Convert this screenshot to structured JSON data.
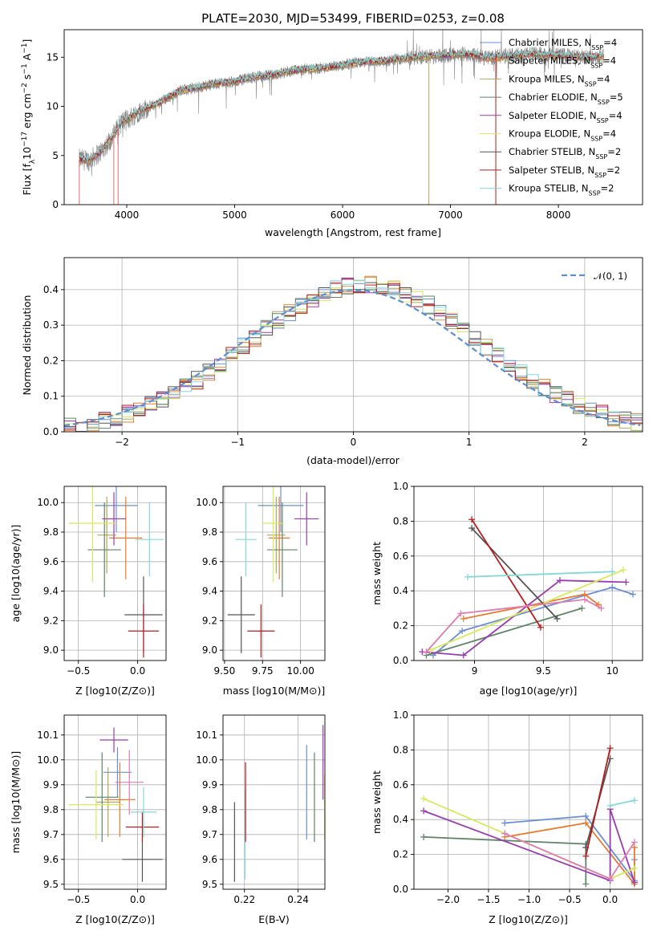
{
  "colors": {
    "gray": "#808080",
    "fit": [
      "#6b8fd6",
      "#e87b2e",
      "#b5a55a",
      "#5e8566",
      "#9b3bb0",
      "#e5e862",
      "#555555",
      "#b81c1c",
      "#85d8d8"
    ],
    "normal_line": "#5b8fd6",
    "grid": "#b0b0b0"
  },
  "chart_data": [
    {
      "id": "spectrum",
      "type": "line",
      "title": "PLATE=2030, MJD=53499, FIBERID=0253, z=0.08",
      "xlabel": "wavelength [Angstrom, rest frame]",
      "ylabel_parts": [
        "Flux [f",
        "λ",
        "10",
        "−17",
        " erg cm",
        "−2",
        " s",
        "−1",
        " A",
        "−1",
        "]"
      ],
      "xlim": [
        3420,
        8780
      ],
      "ylim": [
        0,
        17.8
      ],
      "xticks": [
        4000,
        5000,
        6000,
        7000,
        8000
      ],
      "yticks": [
        0,
        5,
        10,
        15
      ],
      "continuum": [
        [
          3560,
          4.6
        ],
        [
          3650,
          4.5
        ],
        [
          3750,
          5.3
        ],
        [
          3850,
          6.6
        ],
        [
          3950,
          8.4
        ],
        [
          4000,
          8.6
        ],
        [
          4100,
          9.4
        ],
        [
          4200,
          9.9
        ],
        [
          4300,
          10.4
        ],
        [
          4400,
          11.0
        ],
        [
          4500,
          11.6
        ],
        [
          4600,
          11.8
        ],
        [
          4700,
          12.0
        ],
        [
          4800,
          12.3
        ],
        [
          4900,
          12.4
        ],
        [
          5000,
          12.5
        ],
        [
          5100,
          12.8
        ],
        [
          5200,
          13.0
        ],
        [
          5300,
          13.1
        ],
        [
          5400,
          13.3
        ],
        [
          5500,
          13.5
        ],
        [
          5600,
          13.7
        ],
        [
          5700,
          13.8
        ],
        [
          5800,
          13.9
        ],
        [
          5900,
          14.0
        ],
        [
          6000,
          14.2
        ],
        [
          6100,
          14.4
        ],
        [
          6200,
          14.5
        ],
        [
          6300,
          14.6
        ],
        [
          6400,
          14.6
        ],
        [
          6500,
          14.8
        ],
        [
          6600,
          14.9
        ],
        [
          6700,
          15.0
        ],
        [
          6800,
          15.1
        ],
        [
          6900,
          15.2
        ],
        [
          7000,
          15.2
        ],
        [
          7100,
          15.3
        ],
        [
          7200,
          15.3
        ],
        [
          7300,
          15.0
        ],
        [
          7400,
          15.0
        ],
        [
          7500,
          15.1
        ],
        [
          7600,
          15.2
        ],
        [
          7700,
          15.3
        ],
        [
          7800,
          15.3
        ],
        [
          7900,
          15.2
        ],
        [
          8000,
          15.2
        ],
        [
          8100,
          15.1
        ],
        [
          8200,
          15.0
        ],
        [
          8300,
          15.0
        ],
        [
          8400,
          15.1
        ],
        [
          8500,
          15.4
        ]
      ],
      "spikes": [
        [
          3560,
          0
        ],
        [
          3880,
          0
        ],
        [
          3920,
          0
        ],
        [
          6800,
          0
        ],
        [
          7420,
          0
        ]
      ],
      "legend": [
        {
          "pre": "Chabrier MILES, N",
          "sub": "SSP",
          "post": "=4"
        },
        {
          "pre": "Salpeter MILES, N",
          "sub": "SSP",
          "post": "=4"
        },
        {
          "pre": "Kroupa MILES, N",
          "sub": "SSP",
          "post": "=4"
        },
        {
          "pre": "Chabrier ELODIE, N",
          "sub": "SSP",
          "post": "=5"
        },
        {
          "pre": "Salpeter ELODIE, N",
          "sub": "SSP",
          "post": "=4"
        },
        {
          "pre": "Kroupa ELODIE, N",
          "sub": "SSP",
          "post": "=4"
        },
        {
          "pre": "Chabrier STELIB, N",
          "sub": "SSP",
          "post": "=2"
        },
        {
          "pre": "Salpeter STELIB, N",
          "sub": "SSP",
          "post": "=2"
        },
        {
          "pre": "Kroupa STELIB, N",
          "sub": "SSP",
          "post": "=2"
        }
      ]
    },
    {
      "id": "residuals",
      "type": "line",
      "xlabel": "(data-model)/error",
      "ylabel": "Normed distribution",
      "xlim": [
        -2.5,
        2.5
      ],
      "ylim": [
        0,
        0.49
      ],
      "xticks": [
        -2,
        -1,
        0,
        1,
        2
      ],
      "xticklabels": [
        "−2",
        "−1",
        "0",
        "1",
        "2"
      ],
      "yticks": [
        0,
        0.1,
        0.2,
        0.3,
        0.4
      ],
      "yticklabels": [
        "0.0",
        "0.1",
        "0.2",
        "0.3",
        "0.4"
      ],
      "legend": "𝒩(0, 1)",
      "bin_width": 0.1
    },
    {
      "id": "age-vs-Z",
      "type": "scatter",
      "xlabel": "Z [log10(Z/Z⊙)]",
      "ylabel": "age [log10(age/yr)]",
      "xlim": [
        -0.62,
        0.24
      ],
      "ylim": [
        8.93,
        10.11
      ],
      "xticks": [
        -0.5,
        0.0
      ],
      "xticklabels": [
        "−0.5",
        "0.0"
      ],
      "yticks": [
        9.0,
        9.2,
        9.4,
        9.6,
        9.8,
        10.0
      ],
      "points": [
        {
          "c": 0,
          "x": -0.18,
          "y": 9.98,
          "xe": 0.18,
          "ye": 0.18
        },
        {
          "c": 1,
          "x": -0.1,
          "y": 9.76,
          "xe": 0.14,
          "ye": 0.28
        },
        {
          "c": 2,
          "x": -0.26,
          "y": 9.78,
          "xe": 0.08,
          "ye": 0.26
        },
        {
          "c": 3,
          "x": -0.28,
          "y": 9.68,
          "xe": 0.14,
          "ye": 0.32
        },
        {
          "c": 4,
          "x": -0.2,
          "y": 9.89,
          "xe": 0.1,
          "ye": 0.18
        },
        {
          "c": 5,
          "x": -0.38,
          "y": 9.86,
          "xe": 0.2,
          "ye": 0.4
        },
        {
          "c": 6,
          "x": 0.05,
          "y": 9.24,
          "xe": 0.16,
          "ye": 0.26
        },
        {
          "c": 7,
          "x": 0.05,
          "y": 9.13,
          "xe": 0.13,
          "ye": 0.18
        },
        {
          "c": 8,
          "x": 0.1,
          "y": 9.75,
          "xe": 0.12,
          "ye": 0.25
        }
      ]
    },
    {
      "id": "age-vs-mass",
      "type": "scatter",
      "xlabel": "mass [log10(M/M⊙)]",
      "xlim": [
        9.49,
        10.16
      ],
      "ylim": [
        8.93,
        10.11
      ],
      "xticks": [
        9.5,
        9.75,
        10.0
      ],
      "xticklabels": [
        "9.50",
        "9.75",
        "10.00"
      ],
      "yticks": [
        9.0,
        9.2,
        9.4,
        9.6,
        9.8,
        10.0
      ],
      "points": [
        {
          "c": 0,
          "x": 9.87,
          "y": 9.98,
          "xe": 0.15,
          "ye": 0.18
        },
        {
          "c": 1,
          "x": 9.86,
          "y": 9.76,
          "xe": 0.07,
          "ye": 0.28
        },
        {
          "c": 2,
          "x": 9.84,
          "y": 9.78,
          "xe": 0.06,
          "ye": 0.26
        },
        {
          "c": 3,
          "x": 9.88,
          "y": 9.68,
          "xe": 0.1,
          "ye": 0.32
        },
        {
          "c": 4,
          "x": 10.04,
          "y": 9.89,
          "xe": 0.08,
          "ye": 0.18
        },
        {
          "c": 5,
          "x": 9.82,
          "y": 9.86,
          "xe": 0.07,
          "ye": 0.4
        },
        {
          "c": 6,
          "x": 9.61,
          "y": 9.24,
          "xe": 0.09,
          "ye": 0.26
        },
        {
          "c": 7,
          "x": 9.74,
          "y": 9.13,
          "xe": 0.09,
          "ye": 0.18
        },
        {
          "c": 8,
          "x": 9.64,
          "y": 9.75,
          "xe": 0.07,
          "ye": 0.25
        }
      ]
    },
    {
      "id": "weight-vs-age",
      "type": "line",
      "xlabel": "age  [log10(age/yr)]",
      "ylabel": "mass weight",
      "xlim": [
        8.56,
        10.22
      ],
      "ylim": [
        0,
        1
      ],
      "xticks": [
        9.0,
        9.5,
        10.0
      ],
      "yticks": [
        0,
        0.2,
        0.4,
        0.6,
        0.8,
        1.0
      ],
      "yticklabels": [
        "0.0",
        "0.2",
        "0.4",
        "0.6",
        "0.8",
        "1.0"
      ],
      "series": [
        {
          "c": 0,
          "x": [
            8.7,
            8.91,
            10.0,
            10.15
          ],
          "y": [
            0.03,
            0.17,
            0.42,
            0.38
          ]
        },
        {
          "c": 1,
          "x": 8.9,
          "x_full": [
            8.92,
            9.8,
            9.9
          ],
          "y_full": [
            0.24,
            0.38,
            0.32
          ]
        },
        {
          "c": 3,
          "x": [
            8.65,
            9.78
          ],
          "y": [
            0.03,
            0.3
          ]
        },
        {
          "c": 4,
          "x": [
            8.62,
            8.92,
            9.62,
            10.1
          ],
          "y": [
            0.05,
            0.03,
            0.46,
            0.45
          ]
        },
        {
          "c": 5,
          "x": [
            8.68,
            10.08
          ],
          "y": [
            0.06,
            0.52
          ]
        },
        {
          "c": 6,
          "x": [
            8.98,
            9.6
          ],
          "y": [
            0.76,
            0.24
          ]
        },
        {
          "c": 7,
          "x": [
            8.98,
            9.48
          ],
          "y": [
            0.81,
            0.19
          ]
        },
        {
          "c": 8,
          "x": [
            8.95,
            10.0
          ],
          "y": [
            0.48,
            0.51
          ]
        },
        {
          "c": 9,
          "x": [
            8.65,
            8.9,
            9.8,
            9.92
          ],
          "y": [
            0.05,
            0.27,
            0.35,
            0.3
          ]
        }
      ]
    },
    {
      "id": "mass-vs-Z",
      "type": "scatter",
      "xlabel": "Z [log10(Z/Z⊙)]",
      "ylabel": "mass [log10(M/M⊙)]",
      "xlim": [
        -0.62,
        0.24
      ],
      "ylim": [
        9.48,
        10.18
      ],
      "xticks": [
        -0.5,
        0.0
      ],
      "xticklabels": [
        "−0.5",
        "0.0"
      ],
      "yticks": [
        9.5,
        9.6,
        9.7,
        9.8,
        9.9,
        10.0,
        10.1
      ],
      "points": [
        {
          "c": 0,
          "x": -0.17,
          "y": 9.95,
          "xe": 0.12,
          "ye": 0.1
        },
        {
          "c": 1,
          "x": -0.15,
          "y": 9.84,
          "xe": 0.13,
          "ye": 0.15
        },
        {
          "c": 2,
          "x": -0.25,
          "y": 9.83,
          "xe": 0.1,
          "ye": 0.14
        },
        {
          "c": 3,
          "x": -0.3,
          "y": 9.85,
          "xe": 0.14,
          "ye": 0.18
        },
        {
          "c": 4,
          "x": -0.2,
          "y": 10.08,
          "xe": 0.12,
          "ye": 0.05
        },
        {
          "c": 5,
          "x": -0.35,
          "y": 9.82,
          "xe": 0.23,
          "ye": 0.14
        },
        {
          "c": 6,
          "x": 0.04,
          "y": 9.6,
          "xe": 0.17,
          "ye": 0.09
        },
        {
          "c": 7,
          "x": 0.04,
          "y": 9.73,
          "xe": 0.14,
          "ye": 0.06
        },
        {
          "c": 8,
          "x": 0.05,
          "y": 9.79,
          "xe": 0.11,
          "ye": 0.1
        },
        {
          "c": 9,
          "x": -0.07,
          "y": 9.91,
          "xe": 0.12,
          "ye": 0.13
        }
      ]
    },
    {
      "id": "mass-vs-EBV",
      "type": "scatter",
      "xlabel": "E(B-V)",
      "xlim": [
        0.212,
        0.25
      ],
      "ylim": [
        9.48,
        10.18
      ],
      "xticks": [
        0.22,
        0.24
      ],
      "xticklabels": [
        "0.22",
        "0.24"
      ],
      "yticks": [
        9.5,
        9.6,
        9.7,
        9.8,
        9.9,
        10.0,
        10.1
      ],
      "points": [
        {
          "c": 6,
          "x": 0.2163,
          "y": 9.67,
          "ye": 0.16
        },
        {
          "c": 8,
          "x": 0.2202,
          "y": 9.7,
          "ye": 0.18
        },
        {
          "c": 7,
          "x": 0.2204,
          "y": 9.83,
          "ye": 0.16
        },
        {
          "c": 0,
          "x": 0.2432,
          "y": 9.87,
          "ye": 0.19
        },
        {
          "c": 3,
          "x": 0.2461,
          "y": 9.85,
          "ye": 0.18
        },
        {
          "c": 4,
          "x": 0.2493,
          "y": 9.99,
          "ye": 0.15
        },
        {
          "c": 5,
          "x": 0.2499,
          "y": 9.81,
          "ye": 0.13
        }
      ]
    },
    {
      "id": "weight-vs-Z",
      "type": "line",
      "xlabel": "Z [log10(Z/Z⊙)]",
      "ylabel": "mass weight",
      "xlim": [
        -2.42,
        0.4
      ],
      "ylim": [
        0,
        1
      ],
      "xticks": [
        -2.0,
        -1.5,
        -1.0,
        -0.5,
        0.0
      ],
      "xticklabels": [
        "−2.0",
        "−1.5",
        "−1.0",
        "−0.5",
        "0.0"
      ],
      "yticks": [
        0,
        0.2,
        0.4,
        0.6,
        0.8,
        1.0
      ],
      "yticklabels": [
        "0.0",
        "0.2",
        "0.4",
        "0.6",
        "0.8",
        "1.0"
      ],
      "series": [
        {
          "c": 0,
          "x": [
            -1.3,
            -0.3,
            0.3,
            0.3
          ],
          "y": [
            0.38,
            0.42,
            0.05,
            0.17
          ]
        },
        {
          "c": 1,
          "x": [
            -1.3,
            -0.3,
            0.3,
            0.3
          ],
          "y": [
            0.3,
            0.38,
            0.03,
            0.24
          ]
        },
        {
          "c": 3,
          "x": [
            -2.3,
            -0.3,
            -0.3
          ],
          "y": [
            0.3,
            0.26,
            0.03
          ]
        },
        {
          "c": 4,
          "x": [
            -2.3,
            0.0,
            0.0,
            0.3
          ],
          "y": [
            0.45,
            0.05,
            0.46,
            0.04
          ]
        },
        {
          "c": 5,
          "x": [
            -2.3,
            0.0,
            0.3
          ],
          "y": [
            0.52,
            0.06,
            0.12
          ]
        },
        {
          "c": 6,
          "x": [
            -0.3,
            0.0
          ],
          "y": [
            0.24,
            0.75
          ]
        },
        {
          "c": 7,
          "x": [
            -0.3,
            0.0
          ],
          "y": [
            0.19,
            0.81
          ]
        },
        {
          "c": 8,
          "x": [
            0.0,
            0.3
          ],
          "y": [
            0.48,
            0.51
          ]
        },
        {
          "c": 9,
          "x": [
            -1.3,
            0.0,
            0.3
          ],
          "y": [
            0.32,
            0.06,
            0.27
          ]
        }
      ]
    }
  ]
}
